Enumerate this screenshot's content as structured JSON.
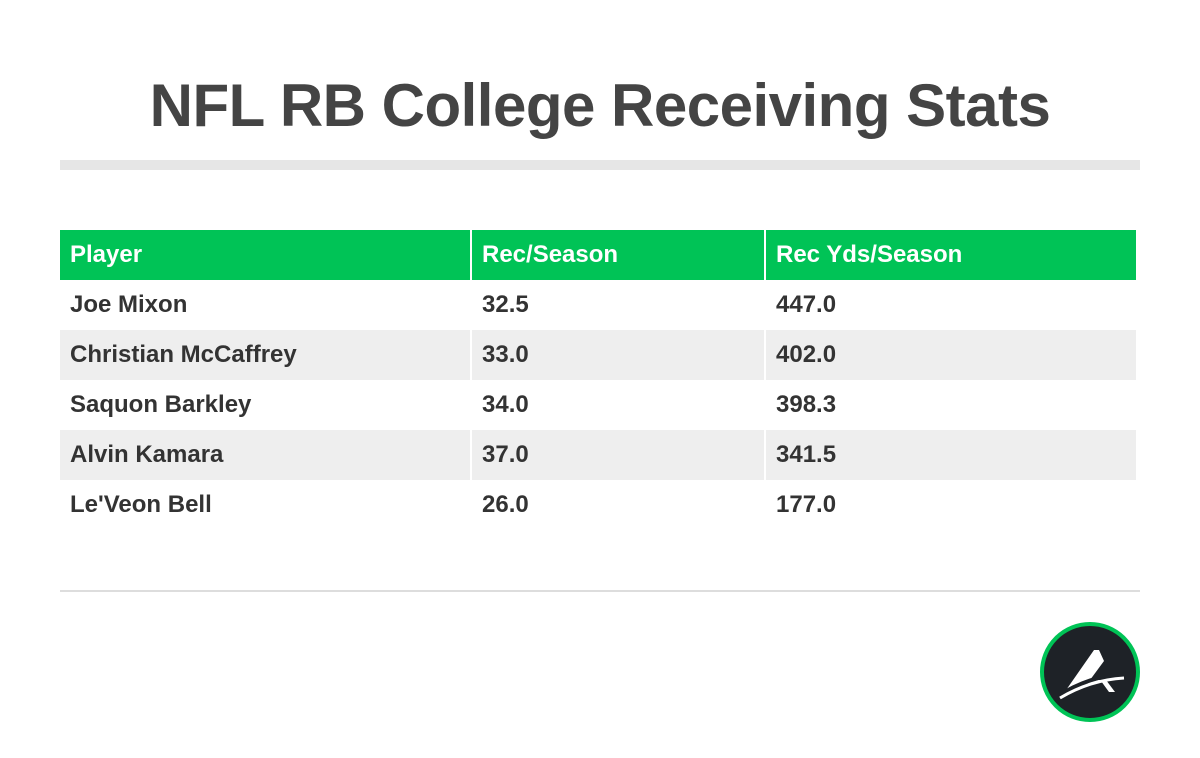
{
  "title": "NFL RB College Receiving Stats",
  "chart_data": {
    "type": "table",
    "title": "NFL RB College Receiving Stats",
    "columns": [
      "Player",
      "Rec/Season",
      "Rec Yds/Season"
    ],
    "rows": [
      [
        "Joe Mixon",
        "32.5",
        "447.0"
      ],
      [
        "Christian McCaffrey",
        "33.0",
        "402.0"
      ],
      [
        "Saquon Barkley",
        "34.0",
        "398.3"
      ],
      [
        "Alvin Kamara",
        "37.0",
        "341.5"
      ],
      [
        "Le'Veon Bell",
        "26.0",
        "177.0"
      ]
    ]
  },
  "colors": {
    "header_bg": "#00c356",
    "title_text": "#444444",
    "stripe": "#eeeeee",
    "logo_bg": "#1e2227"
  },
  "logo": {
    "icon": "brand-a-logo-icon"
  }
}
